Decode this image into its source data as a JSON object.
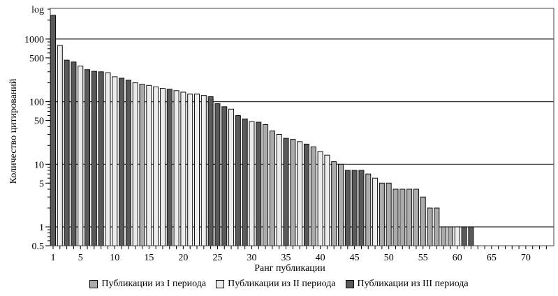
{
  "chart_data": {
    "type": "bar",
    "title": "",
    "xlabel": "Ранг публикации",
    "ylabel": "Количество цитирований",
    "y_scale": "log",
    "y_scale_label": "log",
    "ylim": [
      0.5,
      3100
    ],
    "xlim": [
      1,
      73
    ],
    "y_ticks": [
      "1000",
      "500",
      "100",
      "50",
      "10",
      "5",
      "1",
      "0.5"
    ],
    "y_tick_values": [
      1000,
      500,
      100,
      50,
      10,
      5,
      1,
      0.5
    ],
    "x_ticks": [
      1,
      5,
      10,
      15,
      20,
      25,
      30,
      35,
      40,
      45,
      50,
      55,
      60,
      65,
      70
    ],
    "grid": "horizontal at 1, 10, 100, 1000",
    "legend_position": "bottom",
    "series": [
      {
        "name": "Публикации из I периода",
        "color": "#ababab"
      },
      {
        "name": "Публикации из II периода",
        "color": "#ececec"
      },
      {
        "name": "Публикации из III периода",
        "color": "#5a5a5a"
      }
    ],
    "bars": [
      {
        "rank": 1,
        "period": 3,
        "value": 2400
      },
      {
        "rank": 2,
        "period": 2,
        "value": 790
      },
      {
        "rank": 3,
        "period": 3,
        "value": 460
      },
      {
        "rank": 4,
        "period": 3,
        "value": 430
      },
      {
        "rank": 5,
        "period": 2,
        "value": 370
      },
      {
        "rank": 6,
        "period": 3,
        "value": 325
      },
      {
        "rank": 7,
        "period": 3,
        "value": 305
      },
      {
        "rank": 8,
        "period": 3,
        "value": 300
      },
      {
        "rank": 9,
        "period": 2,
        "value": 290
      },
      {
        "rank": 10,
        "period": 2,
        "value": 250
      },
      {
        "rank": 11,
        "period": 3,
        "value": 237
      },
      {
        "rank": 12,
        "period": 3,
        "value": 220
      },
      {
        "rank": 13,
        "period": 2,
        "value": 200
      },
      {
        "rank": 14,
        "period": 1,
        "value": 190
      },
      {
        "rank": 15,
        "period": 2,
        "value": 182
      },
      {
        "rank": 16,
        "period": 2,
        "value": 172
      },
      {
        "rank": 17,
        "period": 2,
        "value": 163
      },
      {
        "rank": 18,
        "period": 3,
        "value": 158
      },
      {
        "rank": 19,
        "period": 2,
        "value": 150
      },
      {
        "rank": 20,
        "period": 2,
        "value": 142
      },
      {
        "rank": 21,
        "period": 2,
        "value": 132
      },
      {
        "rank": 22,
        "period": 2,
        "value": 132
      },
      {
        "rank": 23,
        "period": 2,
        "value": 126
      },
      {
        "rank": 24,
        "period": 3,
        "value": 120
      },
      {
        "rank": 25,
        "period": 3,
        "value": 93
      },
      {
        "rank": 26,
        "period": 3,
        "value": 83
      },
      {
        "rank": 27,
        "period": 2,
        "value": 76
      },
      {
        "rank": 28,
        "period": 3,
        "value": 60
      },
      {
        "rank": 29,
        "period": 3,
        "value": 53
      },
      {
        "rank": 30,
        "period": 2,
        "value": 48
      },
      {
        "rank": 31,
        "period": 3,
        "value": 47
      },
      {
        "rank": 32,
        "period": 1,
        "value": 43
      },
      {
        "rank": 33,
        "period": 1,
        "value": 34
      },
      {
        "rank": 34,
        "period": 2,
        "value": 30
      },
      {
        "rank": 35,
        "period": 3,
        "value": 26
      },
      {
        "rank": 36,
        "period": 1,
        "value": 25
      },
      {
        "rank": 37,
        "period": 2,
        "value": 23
      },
      {
        "rank": 38,
        "period": 3,
        "value": 21
      },
      {
        "rank": 39,
        "period": 1,
        "value": 19
      },
      {
        "rank": 40,
        "period": 2,
        "value": 16
      },
      {
        "rank": 41,
        "period": 2,
        "value": 14
      },
      {
        "rank": 42,
        "period": 1,
        "value": 11
      },
      {
        "rank": 43,
        "period": 1,
        "value": 10
      },
      {
        "rank": 44,
        "period": 3,
        "value": 8
      },
      {
        "rank": 45,
        "period": 3,
        "value": 8
      },
      {
        "rank": 46,
        "period": 3,
        "value": 8
      },
      {
        "rank": 47,
        "period": 1,
        "value": 7
      },
      {
        "rank": 48,
        "period": 2,
        "value": 6
      },
      {
        "rank": 49,
        "period": 1,
        "value": 5
      },
      {
        "rank": 50,
        "period": 1,
        "value": 5
      },
      {
        "rank": 51,
        "period": 1,
        "value": 4
      },
      {
        "rank": 52,
        "period": 1,
        "value": 4
      },
      {
        "rank": 53,
        "period": 1,
        "value": 4
      },
      {
        "rank": 54,
        "period": 1,
        "value": 4
      },
      {
        "rank": 55,
        "period": 1,
        "value": 3
      },
      {
        "rank": 56,
        "period": 1,
        "value": 2
      },
      {
        "rank": 57,
        "period": 1,
        "value": 2
      },
      {
        "rank": 58,
        "period": 1,
        "value": 1
      },
      {
        "rank": 59,
        "period": 1,
        "value": 1
      },
      {
        "rank": 60,
        "period": 2,
        "value": 1
      },
      {
        "rank": 61,
        "period": 3,
        "value": 1
      },
      {
        "rank": 62,
        "period": 3,
        "value": 1
      }
    ]
  }
}
